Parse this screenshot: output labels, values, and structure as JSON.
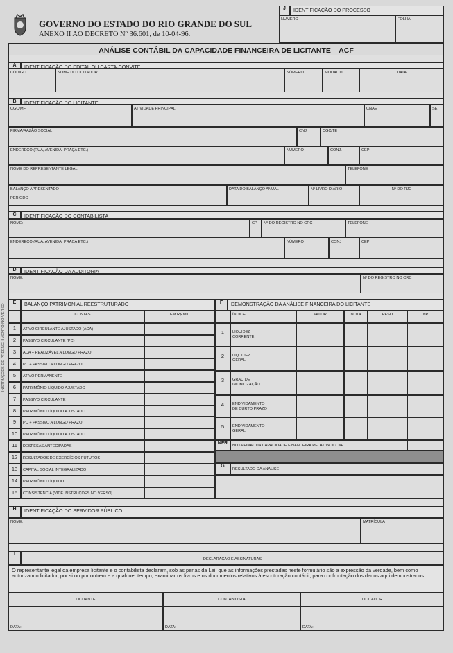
{
  "header": {
    "state": "GOVERNO DO ESTADO DO RIO GRANDE DO SUL",
    "decree": "ANEXO II AO DECRETO Nº 36.601, de 10-04-96.",
    "logo": "coat-of-arms"
  },
  "process": {
    "letter": "J",
    "title": "IDENTIFICAÇÃO DO PROCESSO",
    "numero": "NÚMERO",
    "folha": "FOLHA"
  },
  "title": "ANÁLISE CONTÁBIL DA CAPACIDADE FINANCEIRA DE LICITANTE – ACF",
  "side_note": "INSTRUÇÕES DE PREENCHIMENTO NO VERSO",
  "section_a": {
    "letter": "A",
    "title": "IDENTIFICAÇÃO DO EDITAL OU CARTA-CONVITE",
    "codigo": "CÓDIGO",
    "nome": "NOME DO LICITADOR",
    "numero": "NÚMERO",
    "modalid": "MODALID.",
    "data": "DATA"
  },
  "section_b": {
    "letter": "B",
    "title": "IDENTIFICAÇÃO DO LICITANTE",
    "cgcmf": "CGC/MF",
    "atividade": "ATIVIDADE PRINCIPAL",
    "cnae": "CNAE",
    "se": "SE",
    "firma": "FIRMA/RAZÃO SOCIAL",
    "cnj": "CNJ",
    "cgcte": "CGC/TE",
    "endereco": "ENDEREÇO (rua, avenida, praça etc.)",
    "numero": "NÚMERO",
    "conj": "CONJ.",
    "cep": "CEP",
    "representante": "NOME DO REPRESENTANTE LEGAL",
    "telefone": "TELEFONE",
    "balanco": "BALANÇO APRESENTADO\n\nPERÍODO",
    "data_balanco": "DATA DO BALANÇO ANUAL",
    "livro": "Nº LIVRO DIÁRIO",
    "rjc": "Nº DO RJC"
  },
  "section_c": {
    "letter": "C",
    "title": "IDENTIFICAÇÃO DO CONTABILISTA",
    "nome": "NOME:",
    "cp": "CP",
    "registro": "Nº DO REGISTRO NO CRC",
    "telefone": "TELEFONE",
    "endereco": "ENDEREÇO (rua, avenida, praça etc.)",
    "numero": "NÚMERO",
    "conj": "CONJ",
    "cep": "CEP"
  },
  "section_d": {
    "letter": "D",
    "title": "IDENTIFICAÇÃO DA AUDITORIA",
    "nome": "NOME:",
    "registro": "Nº DO REGISTRO NO CRC"
  },
  "section_e": {
    "letter": "E",
    "title": "BALANÇO PATRIMONIAL REESTRUTURADO",
    "col_contas": "CONTAS",
    "col_valor": "Em R$ Mil",
    "rows": [
      {
        "n": "1",
        "label": "ATIVO CIRCULANTE AJUSTADO (ACA)"
      },
      {
        "n": "2",
        "label": "PASSIVO CIRCULANTE (PC)"
      },
      {
        "n": "3",
        "label": "ACA + REALIZÁVEL A LONGO PRAZO"
      },
      {
        "n": "4",
        "label": "PC + PASSIVO A LONGO PRAZO"
      },
      {
        "n": "5",
        "label": "ATIVO PERMANENTE"
      },
      {
        "n": "6",
        "label": "PATRIMÔNIO LÍQUIDO AJUSTADO"
      },
      {
        "n": "7",
        "label": "PASSIVO CIRCULANTE"
      },
      {
        "n": "8",
        "label": "PATRIMÔNIO LÍQUIDO AJUSTADO"
      },
      {
        "n": "9",
        "label": "PC + PASSIVO A LONGO PRAZO"
      },
      {
        "n": "10",
        "label": "PATRIMÔNIO LÍQUIDO AJUSTADO"
      },
      {
        "n": "11",
        "label": "DESPESAS ANTECIPADAS"
      },
      {
        "n": "12",
        "label": "RESULTADOS DE EXERCÍCIOS FUTUROS"
      },
      {
        "n": "13",
        "label": "CAPITAL SOCIAL INTEGRALIZADO"
      },
      {
        "n": "14",
        "label": "PATRIMÔNIO LÍQUIDO"
      },
      {
        "n": "15",
        "label": "CONSISTÊNCIA (vide instruções no verso)"
      }
    ]
  },
  "section_f": {
    "letter": "F",
    "title": "DEMONSTRAÇÃO DA ANÁLISE FINANCEIRA DO LICITANTE",
    "col_indice": "ÍNDICE",
    "col_valor": "VALOR",
    "col_nota": "NOTA",
    "col_peso": "PESO",
    "col_np": "NP",
    "rows": [
      {
        "n": "1",
        "label": "LIQUIDEZ\nCORRENTE"
      },
      {
        "n": "2",
        "label": "LIQUIDEZ\nGERAL"
      },
      {
        "n": "3",
        "label": "GRAU DE\nIMOBILIZAÇÃO"
      },
      {
        "n": "4",
        "label": "ENDIVIDAMENTO\nDE CURTO PRAZO"
      },
      {
        "n": "5",
        "label": "ENDIVIDAMENTO\nGERAL"
      }
    ],
    "nfr_code": "NFR",
    "nfr_label": "NOTA FINAL DA CAPACIDADE FINANCEIRA RELATIVA = Σ NP"
  },
  "section_g": {
    "letter": "G",
    "title": "RESULTADO DA ANÁLISE"
  },
  "section_h": {
    "letter": "H",
    "title": "IDENTIFICAÇÃO DO SERVIDOR PÚBLICO",
    "nome": "NOME:",
    "matricula": "MATRÍCULA"
  },
  "section_i": {
    "letter": "I",
    "title": "DECLARAÇÃO E ASSINATURAS",
    "declaration": "O representante legal da empresa licitante e o contabilista declaram, sob as penas da Lei, que as informações prestadas neste formulário são a expressão da verdade, bem como autorizam o licitador, por si ou por outrem e a qualquer tempo, examinar os livros e os documentos relativos à escrituração contábil, para confrontação dos dados aqui demonstrados.",
    "signatures": [
      {
        "role": "LICITANTE",
        "date": "DATA:"
      },
      {
        "role": "CONTABILISTA",
        "date": "DATA:"
      },
      {
        "role": "LICITADOR",
        "date": "DATA:"
      }
    ]
  }
}
